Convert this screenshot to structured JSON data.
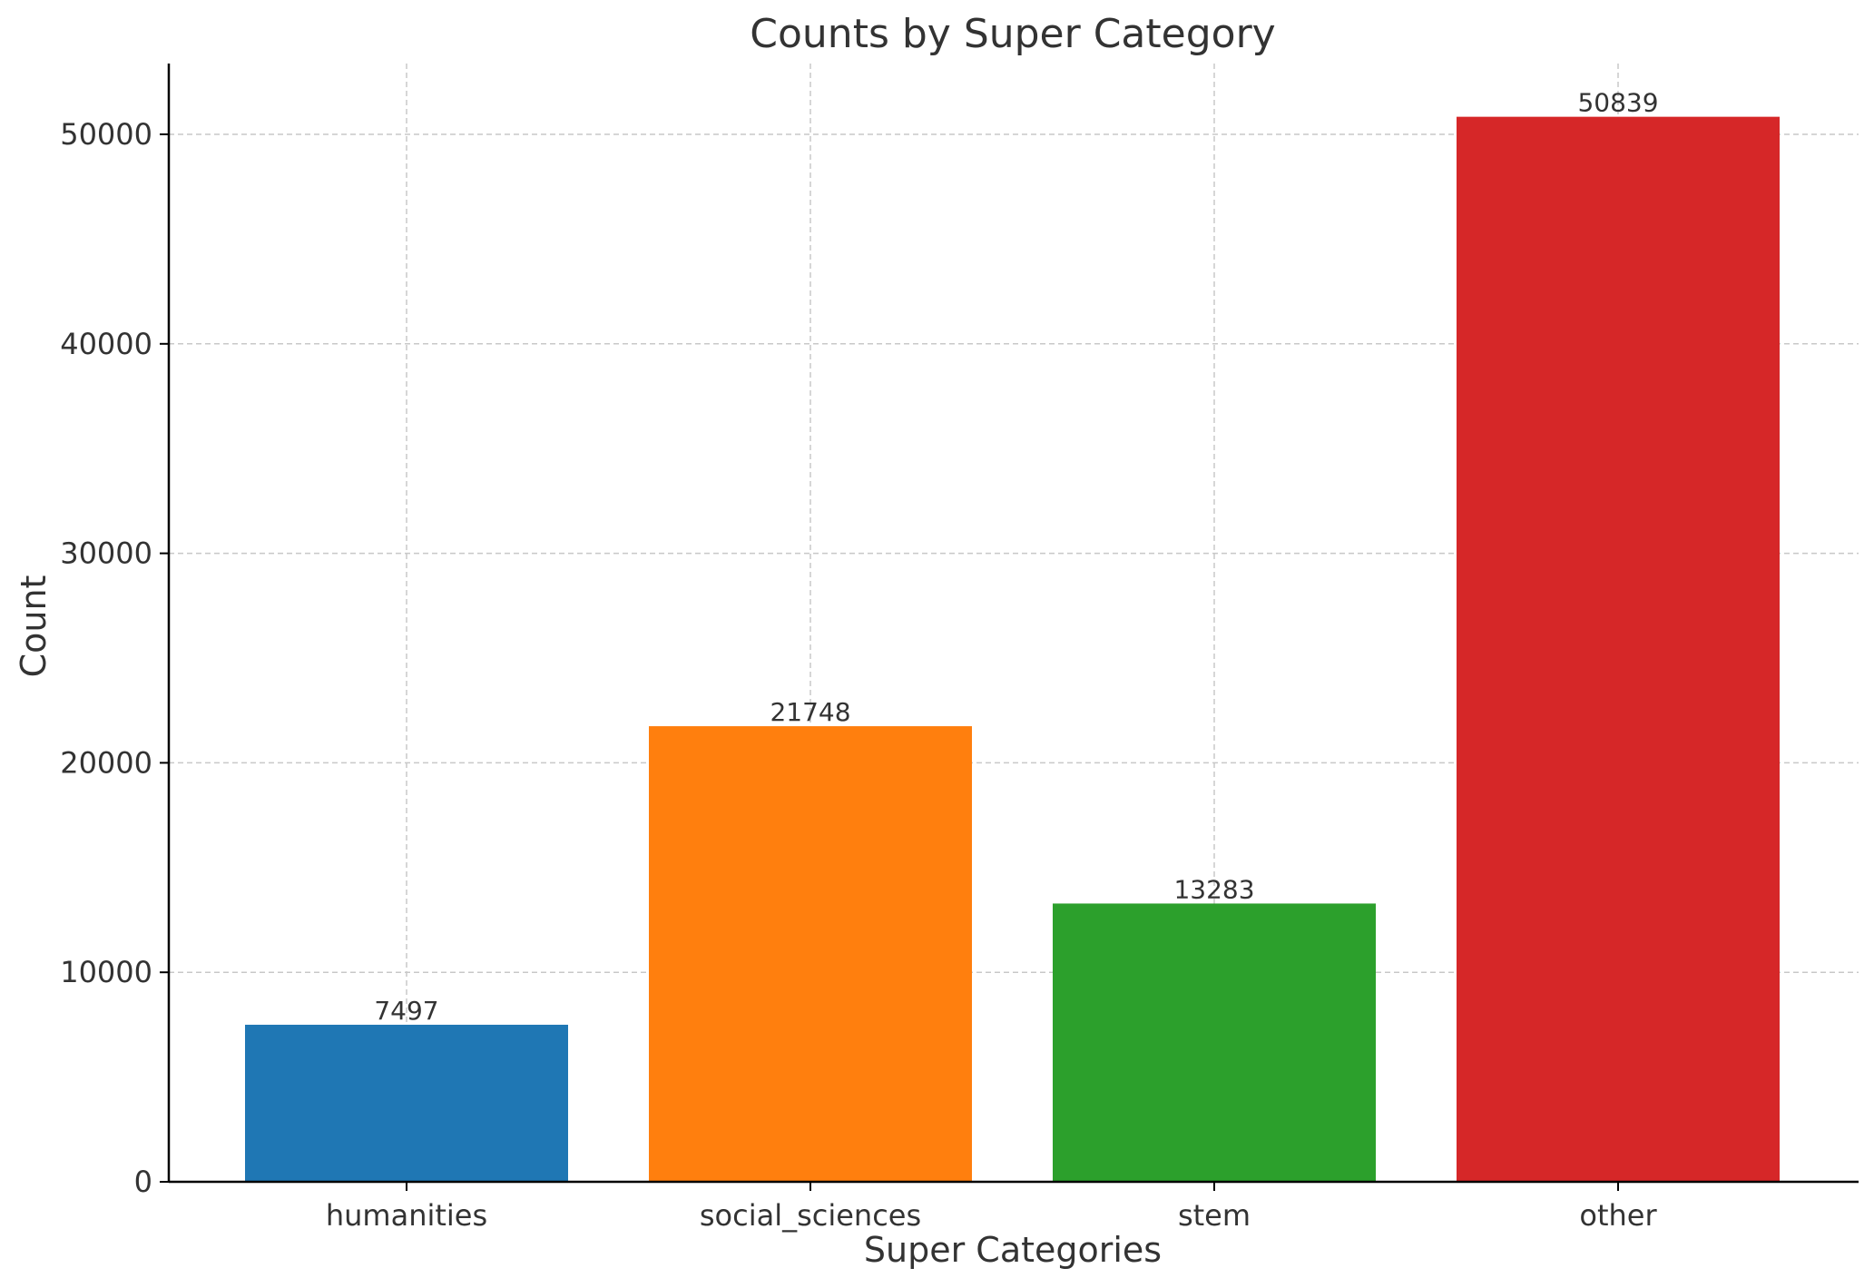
{
  "chart_data": {
    "type": "bar",
    "title": "Counts by Super Category",
    "xlabel": "Super Categories",
    "ylabel": "Count",
    "categories": [
      "humanities",
      "social_sciences",
      "stem",
      "other"
    ],
    "values": [
      7497,
      21748,
      13283,
      50839
    ],
    "colors": [
      "#1f77b4",
      "#ff7f0e",
      "#2ca02c",
      "#d62728"
    ],
    "ylim": [
      0,
      53380
    ],
    "yticks": [
      0,
      10000,
      20000,
      30000,
      40000,
      50000
    ],
    "grid": true,
    "data_labels": [
      "7497",
      "21748",
      "13283",
      "50839"
    ]
  }
}
